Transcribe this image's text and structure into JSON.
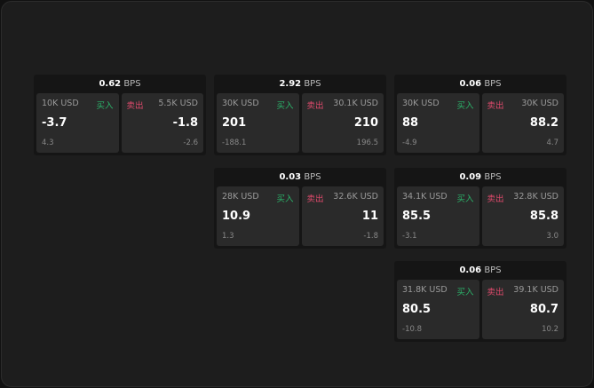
{
  "unit": "BPS",
  "buy_label": "买入",
  "sell_label": "卖出",
  "cards": [
    {
      "spread": "0.62",
      "bid_size": "10K USD",
      "bid": "-3.7",
      "bid_change": "4.3",
      "ask_size": "5.5K USD",
      "ask": "-1.8",
      "ask_change": "-2.6"
    },
    {
      "spread": "2.92",
      "bid_size": "30K USD",
      "bid": "201",
      "bid_change": "-188.1",
      "ask_size": "30.1K USD",
      "ask": "210",
      "ask_change": "196.5"
    },
    {
      "spread": "0.06",
      "bid_size": "30K USD",
      "bid": "88",
      "bid_change": "-4.9",
      "ask_size": "30K USD",
      "ask": "88.2",
      "ask_change": "4.7"
    },
    {
      "spread": "0.03",
      "bid_size": "28K USD",
      "bid": "10.9",
      "bid_change": "1.3",
      "ask_size": "32.6K USD",
      "ask": "11",
      "ask_change": "-1.8"
    },
    {
      "spread": "0.09",
      "bid_size": "34.1K USD",
      "bid": "85.5",
      "bid_change": "-3.1",
      "ask_size": "32.8K USD",
      "ask": "85.8",
      "ask_change": "3.0"
    },
    {
      "spread": "0.06",
      "bid_size": "31.8K USD",
      "bid": "80.5",
      "bid_change": "-10.8",
      "ask_size": "39.1K USD",
      "ask": "80.7",
      "ask_change": "10.2"
    }
  ],
  "colors": {
    "buy": "#2bb36a",
    "sell": "#e04a6c"
  }
}
